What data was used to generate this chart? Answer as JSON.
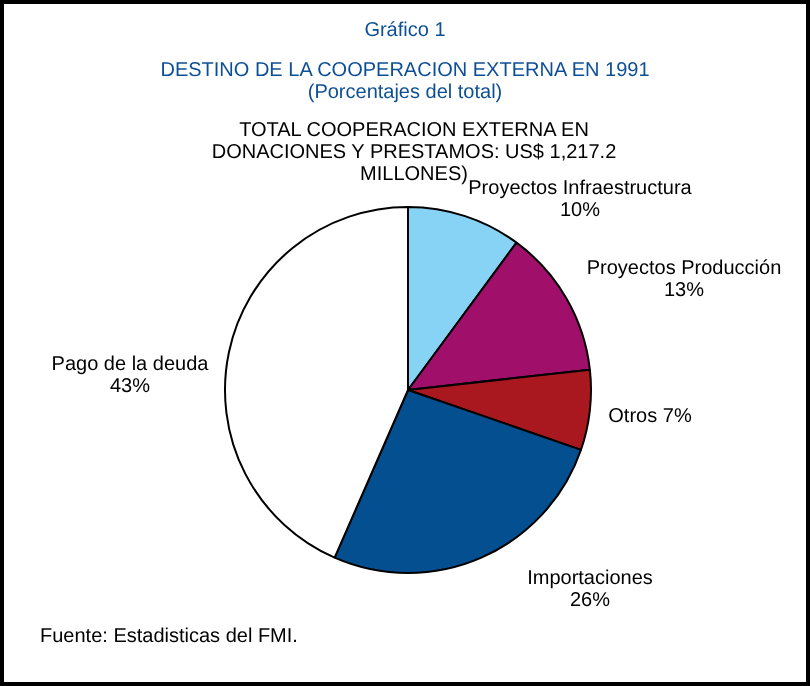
{
  "chart_data": {
    "type": "pie",
    "title": "DESTINO DE LA COOPERACION EXTERNA EN 1991",
    "subtitle": "(Porcentajes del total)",
    "annotations": [
      "Gráfico 1",
      "TOTAL COOPERACION EXTERNA EN DONACIONES Y PRESTAMOS: US$ 1,217.2 MILLONES)",
      "Fuente: Estadisticas del FMI."
    ],
    "categories": [
      "Proyectos Infraestructura",
      "Proyectos Producción",
      "Otros",
      "Importaciones",
      "Pago de la deuda"
    ],
    "values": [
      10,
      13,
      7,
      26,
      43
    ],
    "value_labels": [
      "10%",
      "13%",
      "7%",
      "26%",
      "43%"
    ],
    "colors": [
      "#87d3f5",
      "#a0106a",
      "#a8181e",
      "#034f8f",
      "#ffffff"
    ],
    "data_labels": true,
    "legend": false
  }
}
